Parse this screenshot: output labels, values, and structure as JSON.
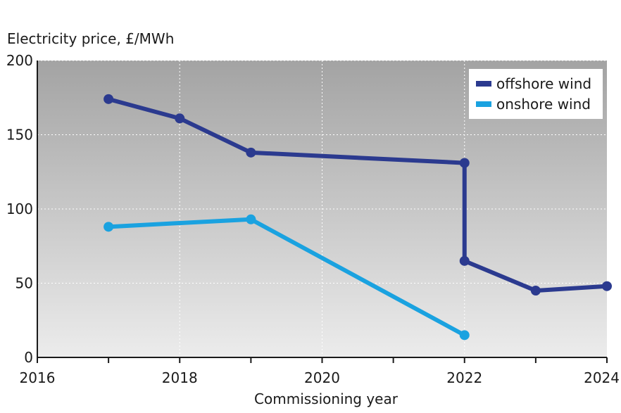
{
  "chart_data": {
    "type": "line",
    "ylabel": "Electricity price, £/MWh",
    "xlabel": "Commissioning year",
    "xlim": [
      2016,
      2024
    ],
    "ylim": [
      0,
      200
    ],
    "x_ticks": [
      2016,
      2018,
      2020,
      2022,
      2024
    ],
    "x_tick_labels": [
      "2016",
      "2018",
      "2020",
      "2022",
      "2024"
    ],
    "y_ticks": [
      0,
      50,
      100,
      150,
      200
    ],
    "y_tick_labels": [
      "0",
      "50",
      "100",
      "150",
      "200"
    ],
    "grid": true,
    "legend_position": "top-right",
    "series": [
      {
        "name": "offshore wind",
        "color": "#2b3a8f",
        "points": [
          {
            "x": 2017,
            "y": 174
          },
          {
            "x": 2018,
            "y": 161
          },
          {
            "x": 2019,
            "y": 138
          },
          {
            "x": 2022,
            "y": 131
          },
          {
            "x": 2022,
            "y": 65
          },
          {
            "x": 2023,
            "y": 45
          },
          {
            "x": 2024,
            "y": 48
          }
        ]
      },
      {
        "name": "onshore wind",
        "color": "#1aa2e0",
        "points": [
          {
            "x": 2017,
            "y": 88
          },
          {
            "x": 2019,
            "y": 93
          },
          {
            "x": 2022,
            "y": 15
          }
        ]
      }
    ]
  }
}
